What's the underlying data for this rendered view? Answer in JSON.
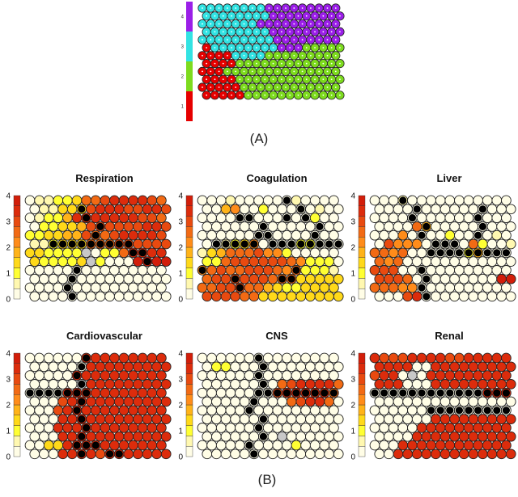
{
  "captions": {
    "a": "(A)",
    "b": "(B)"
  },
  "colors": {
    "cluster": [
      "#e60000",
      "#7ddb1e",
      "#32e3e3",
      "#9b1fe8"
    ],
    "scale": [
      "#fffde6",
      "#fff8b0",
      "#ffff33",
      "#ffd91a",
      "#ffb319",
      "#ff8c1a",
      "#f26a14",
      "#e84a10",
      "#dc2c0c",
      "#d21e0a"
    ],
    "gray": "#c8c8c8",
    "boundary": "#000000"
  },
  "chart_data": [
    {
      "id": "A",
      "type": "heatmap",
      "title": "",
      "legend_ticks": [
        "1",
        "2",
        "3",
        "4"
      ],
      "grid": {
        "cols": 17,
        "rows": 12
      },
      "clusters": [
        {
          "id": 1,
          "color": "#e60000"
        },
        {
          "id": 2,
          "color": "#7ddb1e"
        },
        {
          "id": 3,
          "color": "#32e3e3"
        },
        {
          "id": 4,
          "color": "#9b1fe8"
        }
      ],
      "cluster_map": [
        "33333333444444444",
        "33333333444444444",
        "33333334444444444",
        "33333333444444444",
        "33333333344444444",
        "13333333344422222",
        "11113333222222222",
        "11112222222222222",
        "11122222222222222",
        "11112222222222222",
        "11111222222222222",
        "11111222222222222"
      ]
    },
    {
      "id": "respiration",
      "type": "heatmap",
      "title": "Respiration",
      "scale_ticks": [
        "0",
        "1",
        "2",
        "3",
        "4"
      ],
      "vmin": 0,
      "vmax": 4,
      "grid": {
        "cols": 15,
        "rows": 12
      },
      "value_map": [
        "011223667888876",
        "011333788877887",
        "012248888888776",
        "022334777777887",
        "223344766788887",
        "112333666777777",
        "332222X02268888",
        "322223X20009999",
        "000000000000000",
        "000000000000000",
        "000000000000000",
        "000000000000000"
      ],
      "boundary_map": [
        "000000000000000",
        "000001000000000",
        "000000100000000",
        "000000010000000",
        "000000010000000",
        "001111111110000",
        "000000000001100",
        "000000000000100",
        "000001000000000",
        "000010000000000",
        "000010000000000",
        "000010000000000"
      ]
    },
    {
      "id": "coagulation",
      "type": "heatmap",
      "title": "Coagulation",
      "scale_ticks": [
        "0",
        "1",
        "2",
        "3",
        "4"
      ],
      "vmin": 0,
      "vmax": 4,
      "grid": {
        "cols": 15,
        "rows": 12
      },
      "value_map": [
        "000100000010000",
        "004500200000100",
        "000000000000200",
        "000000000000000",
        "000000000000000",
        "001235000022000",
        "134666755200000",
        "226777777652220",
        "567667776562221",
        "677777766633333",
        "667776643223333",
        "777766333333333"
      ],
      "boundary_map": [
        "000000000100000",
        "000000000010000",
        "000011000101000",
        "000000100000100",
        "000000110000100",
        "011111011111111",
        "000000000000000",
        "000000000000000",
        "100000000010000",
        "000100001100000",
        "000010000000000",
        "000000000000000"
      ]
    },
    {
      "id": "liver",
      "type": "heatmap",
      "title": "Liver",
      "scale_ticks": [
        "0",
        "1",
        "2",
        "3",
        "4"
      ],
      "vmin": 0,
      "vmax": 4,
      "grid": {
        "cols": 15,
        "rows": 12
      },
      "value_map": [
        "000100000000000",
        "000000000000000",
        "000000000000000",
        "000064000000000",
        "000500002000010",
        "075550000062001",
        "665600000024000",
        "656000000000000",
        "777000000000000",
        "777600000000099",
        "666550000000000",
        "000780000000000"
      ],
      "boundary_map": [
        "000100000000000",
        "000010000001000",
        "000010000001000",
        "000001000001000",
        "000001000001000",
        "000000111000000",
        "000000111111111",
        "000000000000000",
        "000001000000000",
        "000001000000000",
        "000001000000000",
        "000001000000000"
      ]
    },
    {
      "id": "cardiovascular",
      "type": "heatmap",
      "title": "Cardiovascular",
      "scale_ticks": [
        "0",
        "1",
        "2",
        "3",
        "4"
      ],
      "vmin": 0,
      "vmax": 4,
      "grid": {
        "cols": 15,
        "rows": 12
      },
      "value_map": [
        "000000888888888",
        "000000888888888",
        "000008888888888",
        "00000X888888888",
        "000088888888888",
        "000788888888888",
        "000788888888888",
        "000888888888888",
        "000888888888888",
        "000888888888888",
        "003388888888888",
        "000888878888888"
      ],
      "boundary_map": [
        "000000100000000",
        "000001000000000",
        "000001000000000",
        "000001000000000",
        "111111100000000",
        "000001000000000",
        "000001000000000",
        "000001000000000",
        "000000100000000",
        "000001000000000",
        "000001110000000",
        "000001001100000"
      ]
    },
    {
      "id": "cns",
      "type": "heatmap",
      "title": "CNS",
      "scale_ticks": [
        "0",
        "1",
        "2",
        "3",
        "4"
      ],
      "vmin": 0,
      "vmax": 4,
      "grid": {
        "cols": 15,
        "rows": 12
      },
      "value_map": [
        "000000000000000",
        "022000000000000",
        "000000000000000",
        "000000006788886",
        "000000007888886",
        "000000000678860",
        "000000000000000",
        "000000000000000",
        "000000000000000",
        "00000000X000000",
        "000000000020000",
        "000000000000000"
      ],
      "boundary_map": [
        "000000100000000",
        "000000100000000",
        "000000100000000",
        "000000100000000",
        "000000111111111",
        "000001000000000",
        "000001000000000",
        "000000100000000",
        "000000100000000",
        "000000100000000",
        "000001000000000",
        "000001000000000"
      ]
    },
    {
      "id": "renal",
      "type": "heatmap",
      "title": "Renal",
      "scale_ticks": [
        "0",
        "1",
        "2",
        "3",
        "4"
      ],
      "vmin": 0,
      "vmax": 4,
      "grid": {
        "cols": 15,
        "rows": 12
      },
      "value_map": [
        "877788887788888",
        "888800888888888",
        "7880X0888888888",
        "888000888888888",
        "000000000000888",
        "000000000000000",
        "000000000000000",
        "000000888888888",
        "000008888888888",
        "000088888888888",
        "000888888888888",
        "008888888888888"
      ],
      "boundary_map": [
        "000000000000000",
        "000000000000000",
        "000000000000000",
        "000000000000000",
        "111111111111111",
        "000000000000000",
        "000000111111111",
        "000000000000000",
        "000000000000000",
        "000000000000000",
        "000000000000000",
        "000000000000000"
      ]
    }
  ]
}
